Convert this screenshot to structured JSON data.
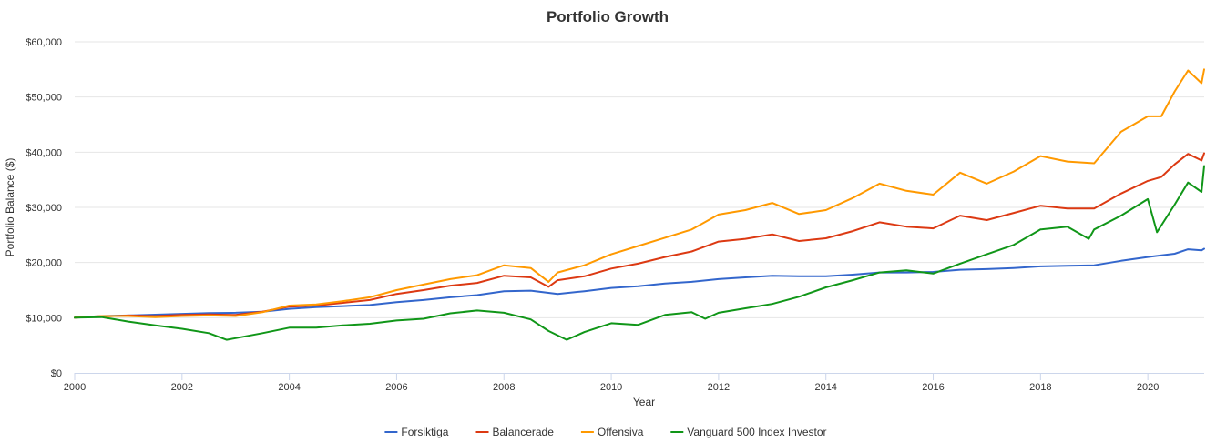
{
  "chart_data": {
    "type": "line",
    "title": "Portfolio Growth",
    "xlabel": "Year",
    "ylabel": "Portfolio Balance ($)",
    "xlim": [
      2000,
      2021.05
    ],
    "ylim": [
      0,
      60000
    ],
    "x_ticks": [
      2000,
      2002,
      2004,
      2006,
      2008,
      2010,
      2012,
      2014,
      2016,
      2018,
      2020
    ],
    "x_tick_labels": [
      "2000",
      "2002",
      "2004",
      "2006",
      "2008",
      "2010",
      "2012",
      "2014",
      "2016",
      "2018",
      "2020"
    ],
    "y_ticks": [
      0,
      10000,
      20000,
      30000,
      40000,
      50000,
      60000
    ],
    "y_tick_labels": [
      "$0",
      "$10,000",
      "$20,000",
      "$30,000",
      "$40,000",
      "$50,000",
      "$60,000"
    ],
    "grid": true,
    "legend_position": "bottom-center",
    "series": [
      {
        "name": "Forsiktiga",
        "color": "#3366cc",
        "points": [
          [
            2000,
            10000
          ],
          [
            2000.5,
            10300
          ],
          [
            2001,
            10400
          ],
          [
            2001.5,
            10550
          ],
          [
            2002,
            10700
          ],
          [
            2002.5,
            10850
          ],
          [
            2003,
            10900
          ],
          [
            2003.5,
            11100
          ],
          [
            2004,
            11600
          ],
          [
            2004.5,
            11900
          ],
          [
            2005,
            12100
          ],
          [
            2005.5,
            12300
          ],
          [
            2006,
            12800
          ],
          [
            2006.5,
            13200
          ],
          [
            2007,
            13700
          ],
          [
            2007.5,
            14100
          ],
          [
            2008,
            14800
          ],
          [
            2008.5,
            14900
          ],
          [
            2008.83,
            14500
          ],
          [
            2009,
            14300
          ],
          [
            2009.5,
            14800
          ],
          [
            2010,
            15400
          ],
          [
            2010.5,
            15700
          ],
          [
            2011,
            16200
          ],
          [
            2011.5,
            16500
          ],
          [
            2012,
            17000
          ],
          [
            2012.5,
            17300
          ],
          [
            2013,
            17600
          ],
          [
            2013.5,
            17500
          ],
          [
            2014,
            17500
          ],
          [
            2014.5,
            17800
          ],
          [
            2015,
            18200
          ],
          [
            2015.5,
            18200
          ],
          [
            2016,
            18300
          ],
          [
            2016.5,
            18700
          ],
          [
            2017,
            18800
          ],
          [
            2017.5,
            19000
          ],
          [
            2018,
            19300
          ],
          [
            2018.5,
            19400
          ],
          [
            2019,
            19500
          ],
          [
            2019.5,
            20300
          ],
          [
            2020,
            21000
          ],
          [
            2020.5,
            21600
          ],
          [
            2020.75,
            22400
          ],
          [
            2021,
            22200
          ],
          [
            2021.05,
            22500
          ]
        ]
      },
      {
        "name": "Balancerade",
        "color": "#dc3912",
        "points": [
          [
            2000,
            10000
          ],
          [
            2000.5,
            10200
          ],
          [
            2001,
            10400
          ],
          [
            2001.5,
            10300
          ],
          [
            2002,
            10500
          ],
          [
            2002.5,
            10600
          ],
          [
            2003,
            10500
          ],
          [
            2003.5,
            11100
          ],
          [
            2004,
            12000
          ],
          [
            2004.5,
            12200
          ],
          [
            2005,
            12700
          ],
          [
            2005.5,
            13200
          ],
          [
            2006,
            14300
          ],
          [
            2006.5,
            15000
          ],
          [
            2007,
            15800
          ],
          [
            2007.5,
            16300
          ],
          [
            2008,
            17600
          ],
          [
            2008.5,
            17300
          ],
          [
            2008.83,
            15600
          ],
          [
            2009,
            16800
          ],
          [
            2009.5,
            17500
          ],
          [
            2010,
            18900
          ],
          [
            2010.5,
            19800
          ],
          [
            2011,
            21000
          ],
          [
            2011.5,
            22000
          ],
          [
            2012,
            23800
          ],
          [
            2012.5,
            24300
          ],
          [
            2013,
            25100
          ],
          [
            2013.5,
            23900
          ],
          [
            2014,
            24400
          ],
          [
            2014.5,
            25700
          ],
          [
            2015,
            27300
          ],
          [
            2015.5,
            26500
          ],
          [
            2016,
            26200
          ],
          [
            2016.5,
            28500
          ],
          [
            2017,
            27700
          ],
          [
            2017.5,
            29000
          ],
          [
            2018,
            30300
          ],
          [
            2018.5,
            29800
          ],
          [
            2019,
            29800
          ],
          [
            2019.5,
            32500
          ],
          [
            2020,
            34800
          ],
          [
            2020.25,
            35500
          ],
          [
            2020.5,
            37800
          ],
          [
            2020.75,
            39700
          ],
          [
            2021,
            38500
          ],
          [
            2021.05,
            39800
          ]
        ]
      },
      {
        "name": "Offensiva",
        "color": "#ff9900",
        "points": [
          [
            2000,
            10000
          ],
          [
            2000.5,
            10300
          ],
          [
            2001,
            10300
          ],
          [
            2001.5,
            10100
          ],
          [
            2002,
            10300
          ],
          [
            2002.5,
            10400
          ],
          [
            2003,
            10300
          ],
          [
            2003.5,
            11000
          ],
          [
            2004,
            12200
          ],
          [
            2004.5,
            12400
          ],
          [
            2005,
            13000
          ],
          [
            2005.5,
            13700
          ],
          [
            2006,
            15000
          ],
          [
            2006.5,
            16000
          ],
          [
            2007,
            17000
          ],
          [
            2007.5,
            17700
          ],
          [
            2008,
            19500
          ],
          [
            2008.5,
            19000
          ],
          [
            2008.83,
            16500
          ],
          [
            2009,
            18200
          ],
          [
            2009.5,
            19500
          ],
          [
            2010,
            21500
          ],
          [
            2010.5,
            23000
          ],
          [
            2011,
            24500
          ],
          [
            2011.5,
            26000
          ],
          [
            2012,
            28700
          ],
          [
            2012.5,
            29500
          ],
          [
            2013,
            30800
          ],
          [
            2013.5,
            28800
          ],
          [
            2014,
            29500
          ],
          [
            2014.5,
            31700
          ],
          [
            2015,
            34300
          ],
          [
            2015.5,
            33000
          ],
          [
            2016,
            32300
          ],
          [
            2016.5,
            36300
          ],
          [
            2017,
            34300
          ],
          [
            2017.5,
            36500
          ],
          [
            2018,
            39300
          ],
          [
            2018.5,
            38300
          ],
          [
            2019,
            38000
          ],
          [
            2019.5,
            43700
          ],
          [
            2020,
            46500
          ],
          [
            2020.25,
            46500
          ],
          [
            2020.5,
            51000
          ],
          [
            2020.75,
            54800
          ],
          [
            2021,
            52500
          ],
          [
            2021.05,
            55000
          ]
        ]
      },
      {
        "name": "Vanguard 500 Index Investor",
        "color": "#109618",
        "points": [
          [
            2000,
            10000
          ],
          [
            2000.5,
            10100
          ],
          [
            2001,
            9300
          ],
          [
            2001.5,
            8600
          ],
          [
            2002,
            8000
          ],
          [
            2002.5,
            7200
          ],
          [
            2002.83,
            6000
          ],
          [
            2003,
            6300
          ],
          [
            2003.5,
            7200
          ],
          [
            2004,
            8200
          ],
          [
            2004.5,
            8200
          ],
          [
            2005,
            8600
          ],
          [
            2005.5,
            8900
          ],
          [
            2006,
            9500
          ],
          [
            2006.5,
            9800
          ],
          [
            2007,
            10800
          ],
          [
            2007.5,
            11300
          ],
          [
            2008,
            10900
          ],
          [
            2008.5,
            9700
          ],
          [
            2008.83,
            7600
          ],
          [
            2009.17,
            6000
          ],
          [
            2009.5,
            7400
          ],
          [
            2010,
            9000
          ],
          [
            2010.5,
            8700
          ],
          [
            2011,
            10500
          ],
          [
            2011.5,
            11000
          ],
          [
            2011.75,
            9800
          ],
          [
            2012,
            10900
          ],
          [
            2012.5,
            11700
          ],
          [
            2013,
            12500
          ],
          [
            2013.5,
            13800
          ],
          [
            2014,
            15500
          ],
          [
            2014.5,
            16800
          ],
          [
            2015,
            18200
          ],
          [
            2015.5,
            18600
          ],
          [
            2016,
            18000
          ],
          [
            2016.5,
            19800
          ],
          [
            2017,
            21500
          ],
          [
            2017.5,
            23200
          ],
          [
            2018,
            26000
          ],
          [
            2018.5,
            26500
          ],
          [
            2018.9,
            24300
          ],
          [
            2019,
            26000
          ],
          [
            2019.5,
            28500
          ],
          [
            2020,
            31500
          ],
          [
            2020.17,
            25500
          ],
          [
            2020.5,
            30500
          ],
          [
            2020.75,
            34500
          ],
          [
            2021,
            32800
          ],
          [
            2021.05,
            37500
          ]
        ]
      }
    ]
  }
}
